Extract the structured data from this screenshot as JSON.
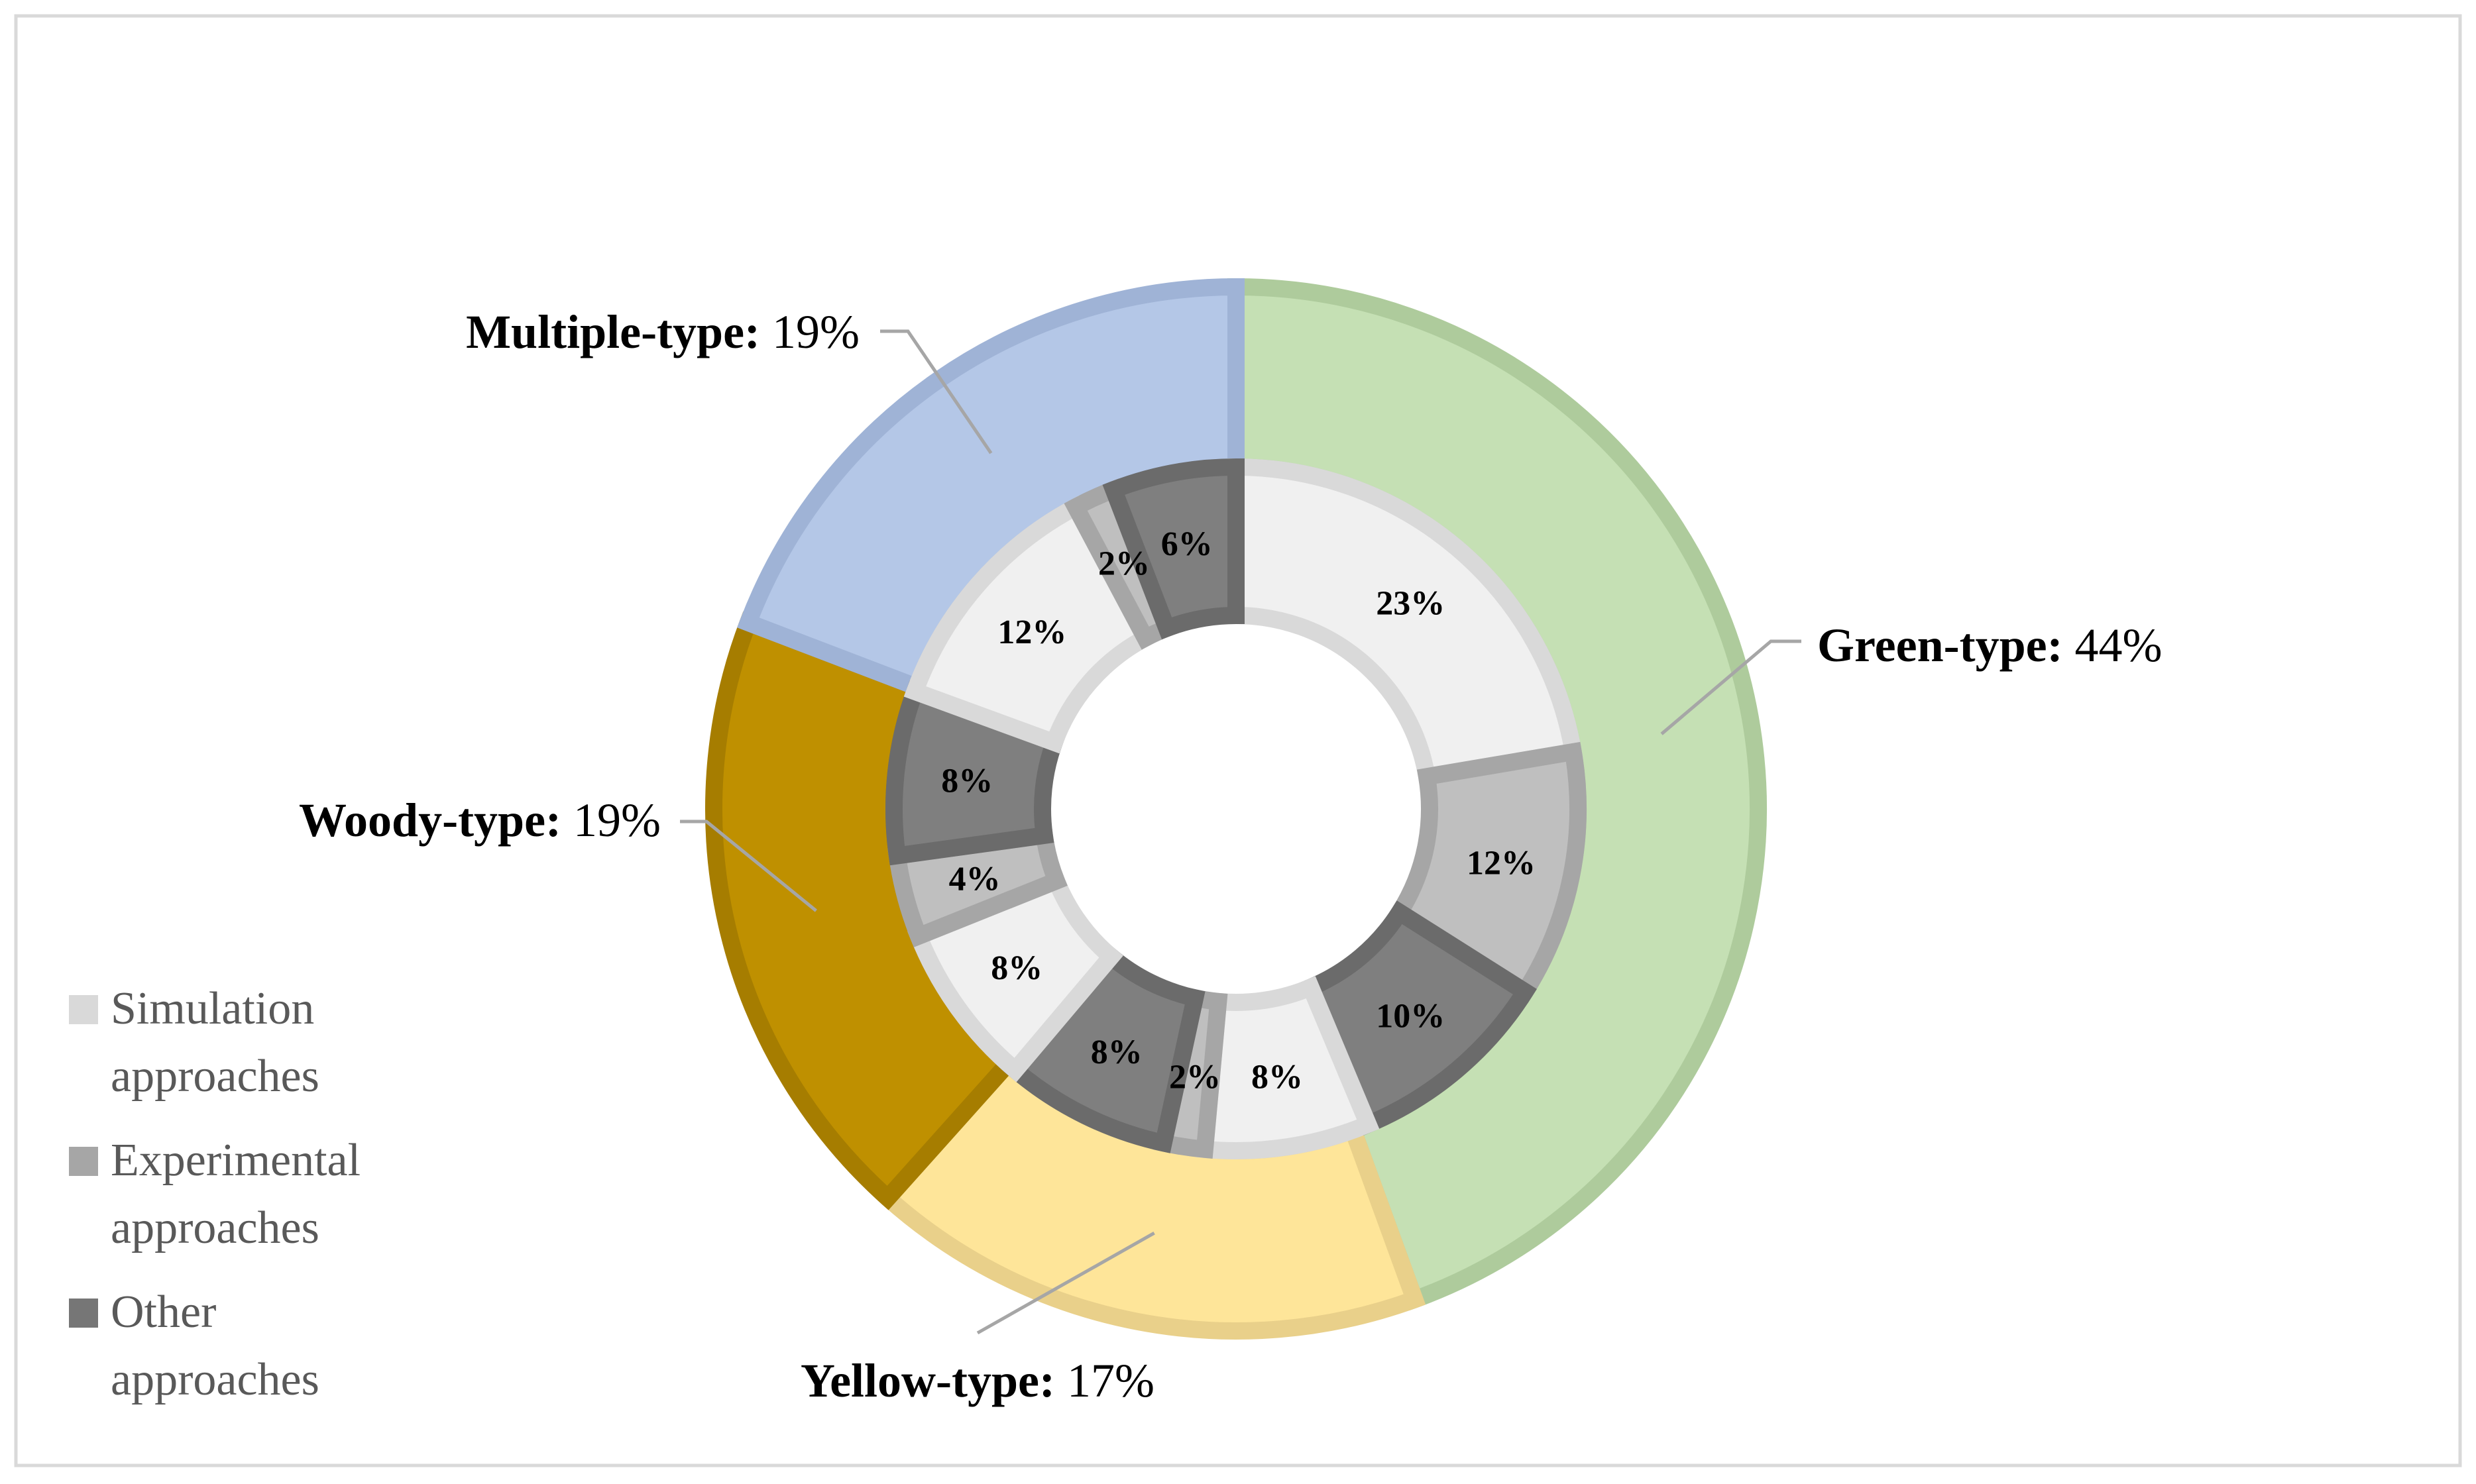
{
  "chart_data": {
    "type": "pie",
    "subtype": "nested-donut",
    "title": "",
    "outer_ring": [
      {
        "name": "Green-type",
        "value": 44,
        "label": "44%",
        "fill": "#c5e0b4",
        "stroke": "#aecb9c"
      },
      {
        "name": "Yellow-type",
        "value": 17,
        "label": "17%",
        "fill": "#fee599",
        "stroke": "#e9d08a"
      },
      {
        "name": "Woody-type",
        "value": 19,
        "label": "19%",
        "fill": "#bf9000",
        "stroke": "#a67d00"
      },
      {
        "name": "Multiple-type",
        "value": 19,
        "label": "19%",
        "fill": "#b4c7e7",
        "stroke": "#9fb3d6"
      }
    ],
    "inner_ring": [
      {
        "parent": "Green-type",
        "approach": "Simulation approaches",
        "value": 23,
        "label": "23%"
      },
      {
        "parent": "Green-type",
        "approach": "Experimental approaches",
        "value": 12,
        "label": "12%"
      },
      {
        "parent": "Green-type",
        "approach": "Other approaches",
        "value": 10,
        "label": "10%"
      },
      {
        "parent": "Yellow-type",
        "approach": "Simulation approaches",
        "value": 8,
        "label": "8%"
      },
      {
        "parent": "Yellow-type",
        "approach": "Experimental approaches",
        "value": 2,
        "label": "2%"
      },
      {
        "parent": "Yellow-type",
        "approach": "Other approaches",
        "value": 8,
        "label": "8%"
      },
      {
        "parent": "Woody-type",
        "approach": "Simulation approaches",
        "value": 8,
        "label": "8%"
      },
      {
        "parent": "Woody-type",
        "approach": "Experimental approaches",
        "value": 4,
        "label": "4%"
      },
      {
        "parent": "Woody-type",
        "approach": "Other approaches",
        "value": 8,
        "label": "8%"
      },
      {
        "parent": "Multiple-type",
        "approach": "Simulation approaches",
        "value": 12,
        "label": "12%"
      },
      {
        "parent": "Multiple-type",
        "approach": "Experimental approaches",
        "value": 2,
        "label": "2%"
      },
      {
        "parent": "Multiple-type",
        "approach": "Other approaches",
        "value": 6,
        "label": "6%"
      }
    ],
    "legend": {
      "placement": "bottom-left",
      "entries": [
        {
          "line1": "Simulation",
          "line2": "approaches",
          "fill": "#d9d9d9"
        },
        {
          "line1": "Experimental",
          "line2": "approaches",
          "fill": "#a6a6a6"
        },
        {
          "line1": "Other",
          "line2": "approaches",
          "fill": "#767676"
        }
      ]
    },
    "approach_colors": {
      "Simulation approaches": {
        "fill": "#f0f0f0",
        "stroke": "#d9d9d9"
      },
      "Experimental approaches": {
        "fill": "#bfbfbf",
        "stroke": "#a6a6a6"
      },
      "Other approaches": {
        "fill": "#7f7f7f",
        "stroke": "#6b6b6b"
      }
    },
    "label_colors": {
      "category": "#000000",
      "legend_text": "#595959",
      "leader_line": "#a6a6a6",
      "border": "#d9d9d9"
    }
  }
}
